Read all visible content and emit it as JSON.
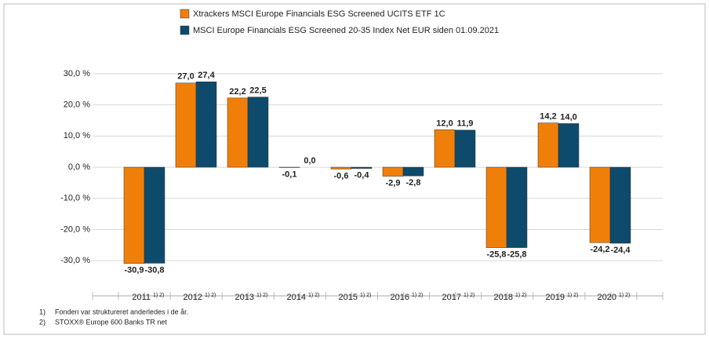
{
  "chart_data": {
    "type": "bar",
    "categories": [
      "2011",
      "2012",
      "2013",
      "2014",
      "2015",
      "2016",
      "2017",
      "2018",
      "2019",
      "2020"
    ],
    "category_note": "1) 2)",
    "series": [
      {
        "name": "Xtrackers MSCI Europe Financials ESG Screened UCITS ETF  1C",
        "color": "#f07f09",
        "values": [
          -30.9,
          27.0,
          22.2,
          -0.1,
          -0.6,
          -2.9,
          12.0,
          -25.8,
          14.2,
          -24.2
        ],
        "value_labels": [
          "-30,9",
          "27,0",
          "22,2",
          "-0,1",
          "-0,6",
          "-2,9",
          "12,0",
          "-25,8",
          "14,2",
          "-24,2"
        ]
      },
      {
        "name": "MSCI Europe Financials ESG Screened 20-35 Index Net EUR siden 01.09.2021",
        "color": "#0e4a6b",
        "values": [
          -30.8,
          27.4,
          22.5,
          0.0,
          -0.4,
          -2.8,
          11.9,
          -25.8,
          14.0,
          -24.4
        ],
        "value_labels": [
          "-30,8",
          "27,4",
          "22,5",
          "0,0",
          "-0,4",
          "-2,8",
          "11,9",
          "-25,8",
          "14,0",
          "-24,4"
        ]
      }
    ],
    "ylim": [
      -40,
      35
    ],
    "yticks": [
      {
        "value": -30,
        "label": "-30,0 %"
      },
      {
        "value": -20,
        "label": "-20,0 %"
      },
      {
        "value": -10,
        "label": "-10,0 %"
      },
      {
        "value": 0,
        "label": "0,0 %"
      },
      {
        "value": 10,
        "label": "10,0 %"
      },
      {
        "value": 20,
        "label": "20,0 %"
      },
      {
        "value": 30,
        "label": "30,0 %"
      }
    ],
    "grid": true,
    "footnotes": [
      {
        "marker": "1)",
        "text": "Fonden var struktureret anderledes i de år."
      },
      {
        "marker": "2)",
        "text": "STOXX® Europe 600 Banks TR net"
      }
    ]
  }
}
